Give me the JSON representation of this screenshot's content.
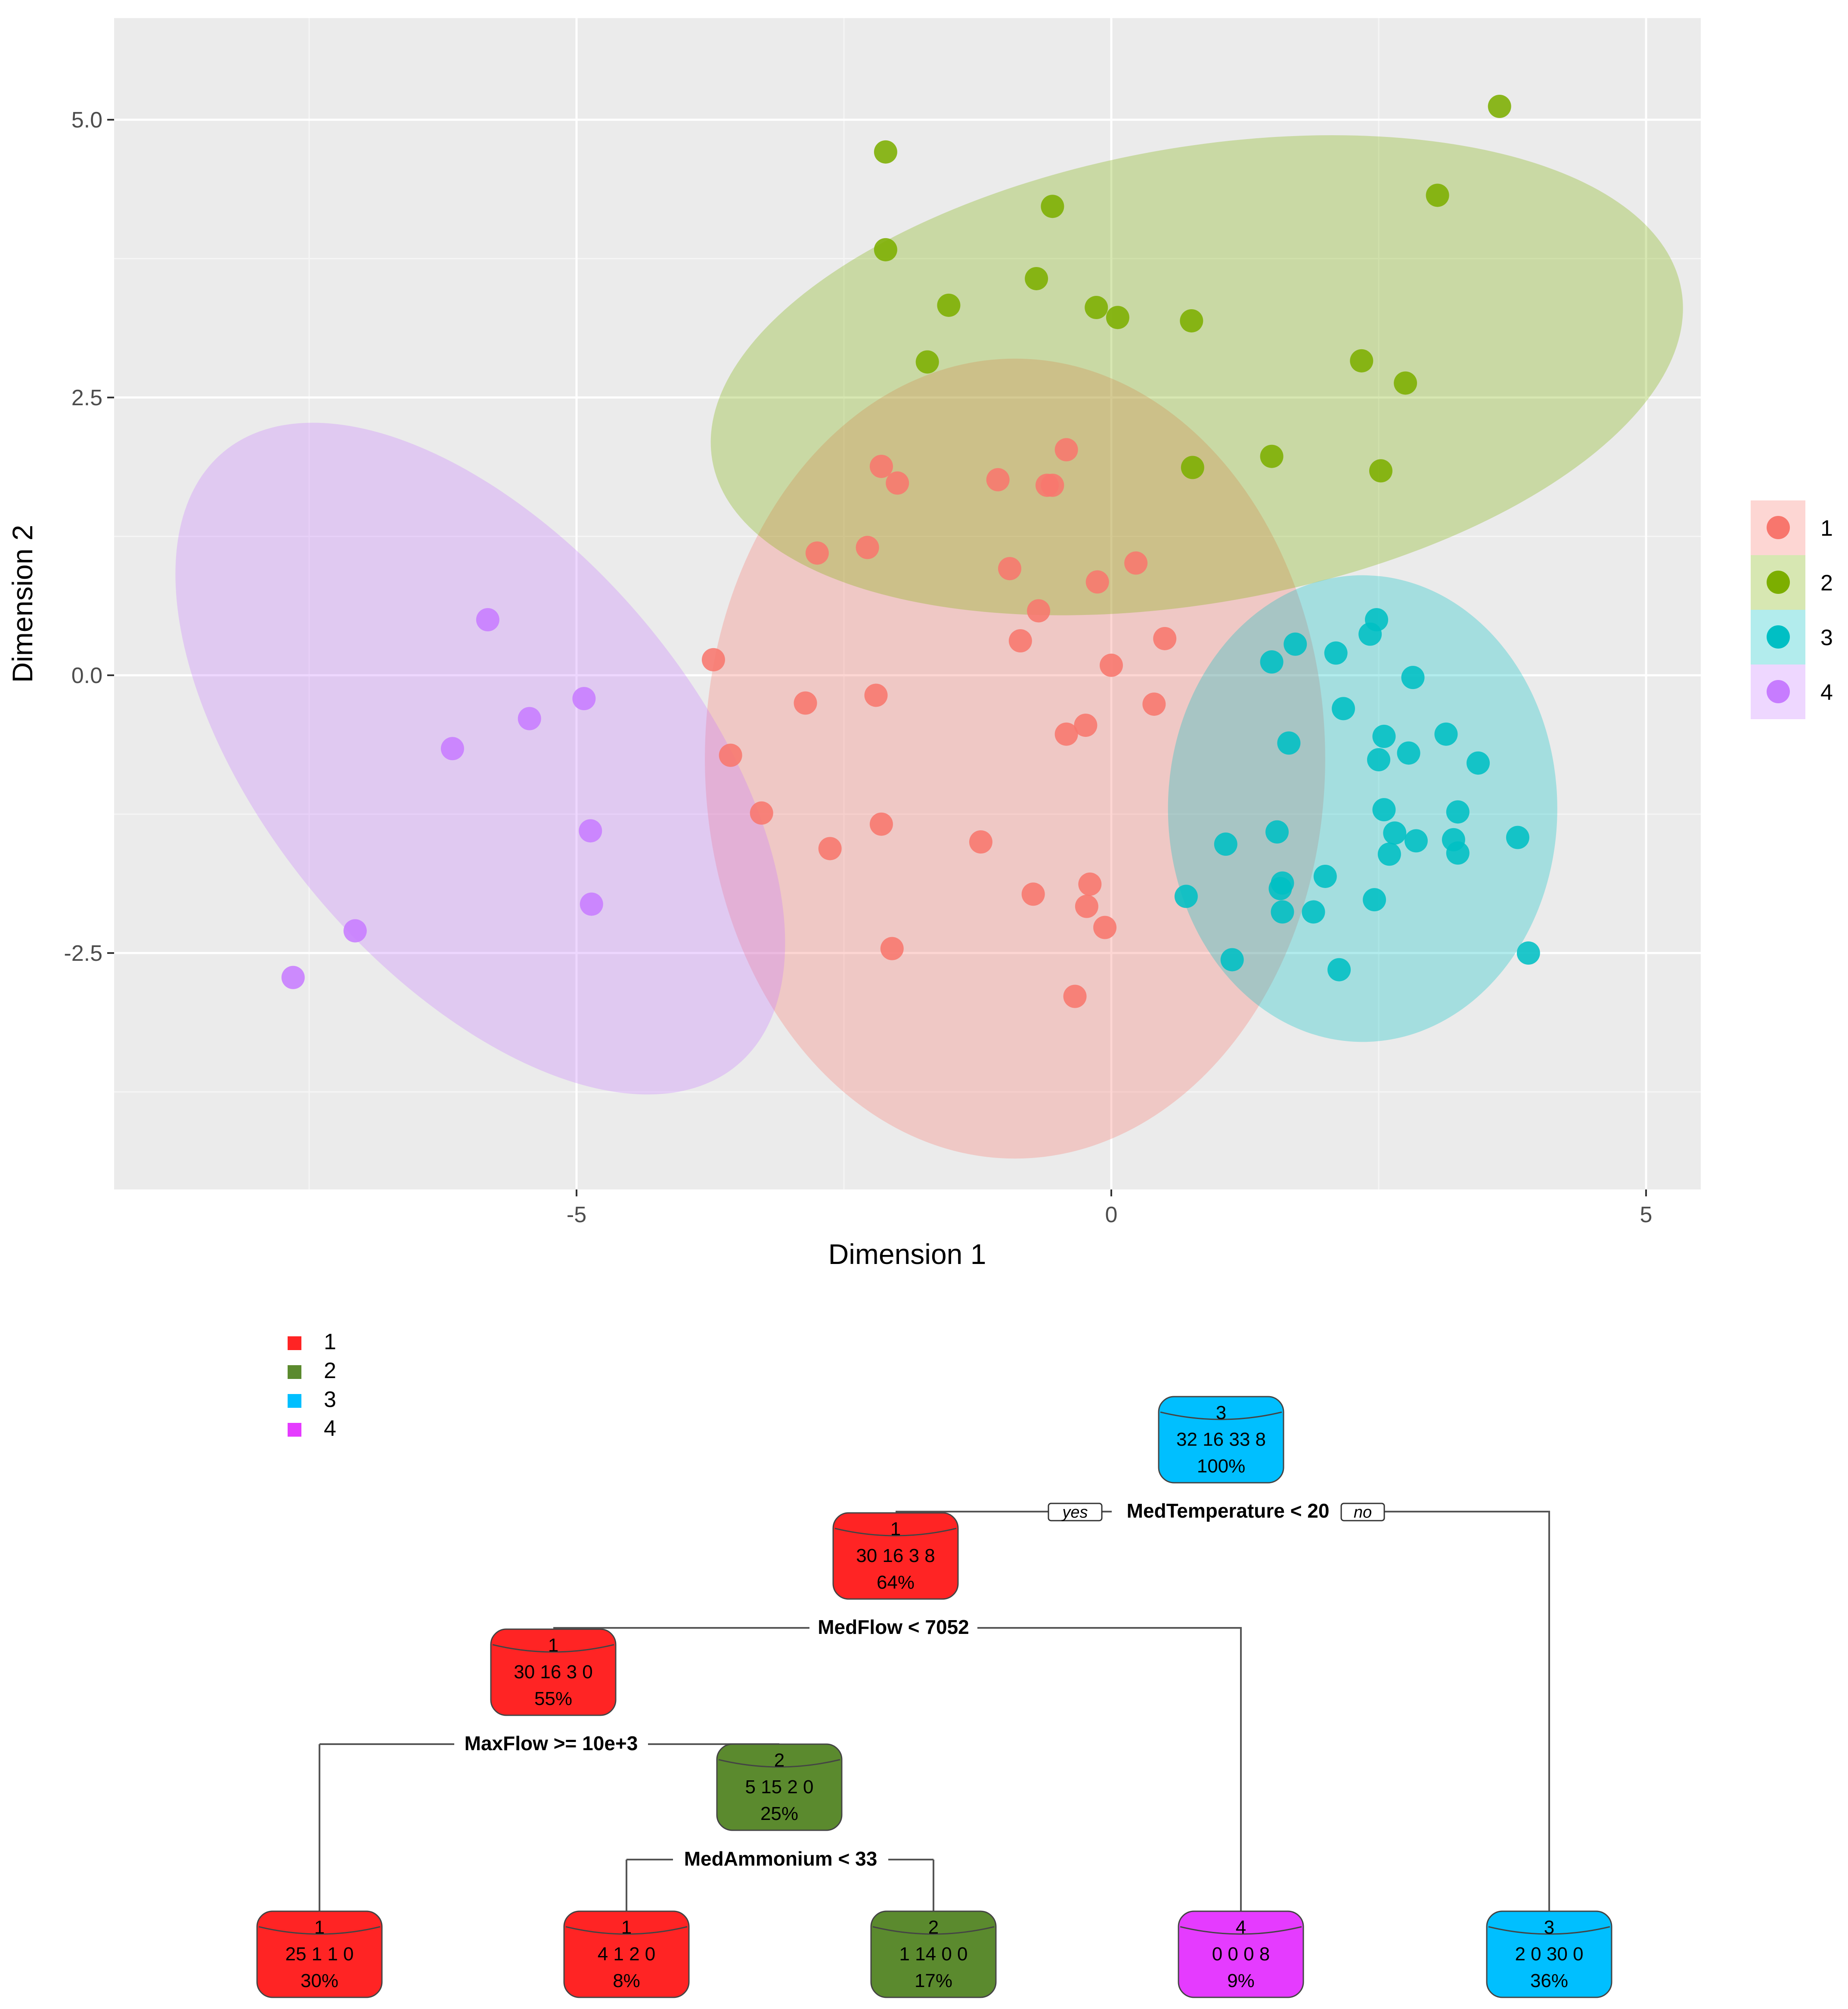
{
  "chart_data": [
    {
      "type": "scatter",
      "xlabel": "Dimension 1",
      "ylabel": "Dimension 2",
      "xlim": [
        -9.3,
        5.5
      ],
      "ylim": [
        -4.6,
        5.9
      ],
      "xticks": [
        -5,
        0,
        5
      ],
      "xtick_labels": [
        "-5",
        "0",
        "5"
      ],
      "yticks": [
        -2.5,
        0,
        2.5,
        5
      ],
      "ytick_labels": [
        "-2.5",
        "0.0",
        "2.5",
        "5.0"
      ],
      "grid": true,
      "legend_position": "right",
      "legend": [
        "1",
        "2",
        "3",
        "4"
      ],
      "colors": {
        "1": "#F8766D",
        "2": "#7CAE00",
        "3": "#00BFC4",
        "4": "#C77CFF"
      },
      "series": [
        {
          "name": "1",
          "points": [
            [
              -2.15,
              1.88
            ],
            [
              -2.0,
              1.73
            ],
            [
              -1.06,
              1.76
            ],
            [
              -0.6,
              1.71
            ],
            [
              -0.55,
              1.71
            ],
            [
              -0.42,
              2.03
            ],
            [
              -2.75,
              1.1
            ],
            [
              -2.28,
              1.15
            ],
            [
              -0.95,
              0.96
            ],
            [
              -0.13,
              0.84
            ],
            [
              0.23,
              1.01
            ],
            [
              -0.68,
              0.58
            ],
            [
              -0.85,
              0.31
            ],
            [
              0.0,
              0.09
            ],
            [
              0.5,
              0.33
            ],
            [
              -3.72,
              0.14
            ],
            [
              -2.86,
              -0.25
            ],
            [
              -2.2,
              -0.18
            ],
            [
              0.4,
              -0.26
            ],
            [
              -0.24,
              -0.45
            ],
            [
              -0.42,
              -0.53
            ],
            [
              -3.56,
              -0.72
            ],
            [
              -3.27,
              -1.24
            ],
            [
              -2.15,
              -1.34
            ],
            [
              -2.63,
              -1.56
            ],
            [
              -1.22,
              -1.5
            ],
            [
              -0.73,
              -1.97
            ],
            [
              -0.2,
              -1.88
            ],
            [
              -0.23,
              -2.08
            ],
            [
              -0.06,
              -2.27
            ],
            [
              -2.05,
              -2.46
            ],
            [
              -0.34,
              -2.89
            ]
          ]
        },
        {
          "name": "2",
          "points": [
            [
              -2.11,
              4.71
            ],
            [
              -0.55,
              4.22
            ],
            [
              3.63,
              5.12
            ],
            [
              3.05,
              4.32
            ],
            [
              -2.11,
              3.83
            ],
            [
              -0.7,
              3.57
            ],
            [
              -1.52,
              3.33
            ],
            [
              -0.14,
              3.31
            ],
            [
              0.06,
              3.22
            ],
            [
              0.75,
              3.19
            ],
            [
              -1.72,
              2.82
            ],
            [
              2.34,
              2.83
            ],
            [
              2.75,
              2.63
            ],
            [
              1.5,
              1.97
            ],
            [
              0.76,
              1.87
            ],
            [
              2.52,
              1.84
            ]
          ]
        },
        {
          "name": "3",
          "points": [
            [
              2.48,
              0.5
            ],
            [
              2.42,
              0.37
            ],
            [
              1.72,
              0.28
            ],
            [
              1.5,
              0.12
            ],
            [
              2.1,
              0.2
            ],
            [
              2.82,
              -0.02
            ],
            [
              2.17,
              -0.3
            ],
            [
              1.66,
              -0.61
            ],
            [
              2.55,
              -0.55
            ],
            [
              2.5,
              -0.76
            ],
            [
              3.13,
              -0.53
            ],
            [
              2.78,
              -0.7
            ],
            [
              3.43,
              -0.79
            ],
            [
              2.55,
              -1.21
            ],
            [
              3.24,
              -1.23
            ],
            [
              1.55,
              -1.41
            ],
            [
              2.65,
              -1.42
            ],
            [
              1.07,
              -1.52
            ],
            [
              2.85,
              -1.49
            ],
            [
              3.2,
              -1.48
            ],
            [
              2.6,
              -1.61
            ],
            [
              3.24,
              -1.6
            ],
            [
              3.8,
              -1.46
            ],
            [
              2.0,
              -1.81
            ],
            [
              1.6,
              -1.87
            ],
            [
              1.58,
              -1.92
            ],
            [
              0.7,
              -1.99
            ],
            [
              2.46,
              -2.02
            ],
            [
              1.6,
              -2.13
            ],
            [
              1.89,
              -2.13
            ],
            [
              1.13,
              -2.56
            ],
            [
              2.13,
              -2.65
            ],
            [
              3.9,
              -2.5
            ]
          ]
        },
        {
          "name": "4",
          "points": [
            [
              -5.83,
              0.5
            ],
            [
              -4.93,
              -0.21
            ],
            [
              -5.44,
              -0.39
            ],
            [
              -6.16,
              -0.66
            ],
            [
              -4.87,
              -1.4
            ],
            [
              -4.86,
              -2.06
            ],
            [
              -7.07,
              -2.3
            ],
            [
              -7.65,
              -2.72
            ]
          ]
        }
      ],
      "ellipses": [
        {
          "group": "1",
          "center": [
            -0.9,
            -0.75
          ],
          "rx": 2.9,
          "ry": 3.6,
          "angle_deg": 0
        },
        {
          "group": "2",
          "center": [
            0.8,
            2.7
          ],
          "rx": 4.6,
          "ry": 2.05,
          "angle_deg": -10
        },
        {
          "group": "3",
          "center": [
            2.35,
            -1.2
          ],
          "rx": 1.82,
          "ry": 2.1,
          "angle_deg": 0
        },
        {
          "group": "4",
          "center": [
            -5.9,
            -0.75
          ],
          "rx": 2.0,
          "ry": 3.6,
          "angle_deg": -40
        }
      ]
    },
    {
      "type": "decision-tree",
      "legend": [
        "1",
        "2",
        "3",
        "4"
      ],
      "class_colors": {
        "1": "#FF2424",
        "2": "#5B8A2E",
        "3": "#00BFFF",
        "4": "#E53BFF"
      },
      "nodes": [
        {
          "id": "root",
          "class": "3",
          "counts": "32  16  33  8",
          "pct": "100%"
        },
        {
          "id": "n2",
          "class": "1",
          "counts": "30  16  3  8",
          "pct": "64%"
        },
        {
          "id": "n4",
          "class": "1",
          "counts": "30  16  3  0",
          "pct": "55%"
        },
        {
          "id": "n9",
          "class": "2",
          "counts": "5  15  2  0",
          "pct": "25%"
        },
        {
          "id": "l1",
          "class": "1",
          "counts": "25  1  1  0",
          "pct": "30%"
        },
        {
          "id": "l2",
          "class": "1",
          "counts": "4  1  2  0",
          "pct": "8%"
        },
        {
          "id": "l3",
          "class": "2",
          "counts": "1  14  0  0",
          "pct": "17%"
        },
        {
          "id": "l4",
          "class": "4",
          "counts": "0  0  0  8",
          "pct": "9%"
        },
        {
          "id": "l5",
          "class": "3",
          "counts": "2  0  30  0",
          "pct": "36%"
        }
      ],
      "splits": [
        {
          "label": "MedTemperature < 20",
          "yes": "yes",
          "no": "no"
        },
        {
          "label": "MedFlow < 7052"
        },
        {
          "label": "MaxFlow >= 10e+3"
        },
        {
          "label": "MedAmmonium < 33"
        }
      ]
    }
  ]
}
